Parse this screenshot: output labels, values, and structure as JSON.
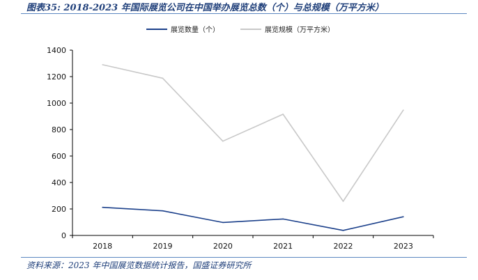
{
  "figure": {
    "title": "图表35:  2018-2023 年国际展览公司在中国举办展览总数（个）与总规模（万平方米）",
    "source": "资料来源：2023 年中国展览数据统计报告，国盛证券研究所"
  },
  "chart_data": {
    "type": "line",
    "title": "",
    "xlabel": "",
    "ylabel": "",
    "categories": [
      "2018",
      "2019",
      "2020",
      "2021",
      "2022",
      "2023"
    ],
    "ylim": [
      0,
      1400
    ],
    "yticks": [
      0,
      200,
      400,
      600,
      800,
      1000,
      1200,
      1400
    ],
    "grid": false,
    "legend_position": "top",
    "series": [
      {
        "name": "展览数量（个）",
        "values": [
          212,
          186,
          98,
          124,
          38,
          141
        ],
        "color": "#1a3f8a"
      },
      {
        "name": "展览规模（万平方米）",
        "values": [
          1290,
          1188,
          712,
          916,
          258,
          947
        ],
        "color": "#c8c8c8"
      }
    ]
  }
}
